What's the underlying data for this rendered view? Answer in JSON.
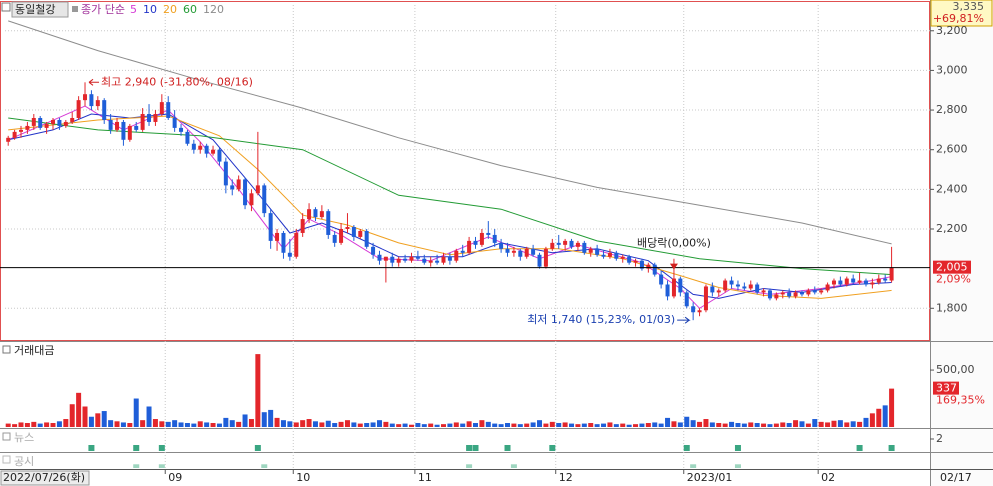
{
  "chart_data": [
    {
      "type": "candlestick",
      "title": "동일철강",
      "ma_label": "종가 단순",
      "up_color": "#e3262b",
      "down_color": "#1f5ed8",
      "xlim": [
        -0.5,
        144
      ],
      "ylim": [
        1640,
        3330
      ],
      "xticks": [
        {
          "value": 25,
          "label": "09"
        },
        {
          "value": 45,
          "label": "10"
        },
        {
          "value": 64,
          "label": "11"
        },
        {
          "value": 86,
          "label": "12"
        },
        {
          "value": 106,
          "label": "2023/01"
        },
        {
          "value": 127,
          "label": "02"
        }
      ],
      "yticks": [
        {
          "value": 3200,
          "label": "3,200"
        },
        {
          "value": 3000,
          "label": "3,000"
        },
        {
          "value": 2800,
          "label": "2,800"
        },
        {
          "value": 2600,
          "label": "2,600"
        },
        {
          "value": 2400,
          "label": "2,400"
        },
        {
          "value": 2200,
          "label": "2,200"
        },
        {
          "value": 1800,
          "label": "1,800"
        }
      ],
      "start_date": "2022/07/26(화)",
      "cursor": {
        "label": "3,335",
        "change": "+69,81%",
        "date": "02/17"
      },
      "last": {
        "value": 2005,
        "label": "2,005",
        "change": "2,09%"
      },
      "high": {
        "x": 12,
        "value": 2940,
        "label": "최고 2,940 (-31,80%, 08/16)"
      },
      "low": {
        "x": 107,
        "value": 1740,
        "label": "최저 1,740 (15,23%, 01/03)"
      },
      "dividend": {
        "x": 104,
        "label": "배당락(0,00%)"
      },
      "ohlc": [
        [
          2640,
          2670,
          2620,
          2660
        ],
        [
          2660,
          2700,
          2650,
          2690
        ],
        [
          2690,
          2720,
          2660,
          2700
        ],
        [
          2700,
          2740,
          2680,
          2720
        ],
        [
          2720,
          2780,
          2700,
          2760
        ],
        [
          2760,
          2770,
          2700,
          2710
        ],
        [
          2710,
          2740,
          2680,
          2730
        ],
        [
          2730,
          2760,
          2700,
          2750
        ],
        [
          2750,
          2760,
          2700,
          2720
        ],
        [
          2720,
          2750,
          2710,
          2740
        ],
        [
          2740,
          2790,
          2730,
          2760
        ],
        [
          2760,
          2870,
          2750,
          2850
        ],
        [
          2850,
          2940,
          2820,
          2880
        ],
        [
          2880,
          2900,
          2800,
          2820
        ],
        [
          2820,
          2870,
          2800,
          2850
        ],
        [
          2850,
          2860,
          2730,
          2750
        ],
        [
          2750,
          2780,
          2680,
          2700
        ],
        [
          2700,
          2760,
          2690,
          2740
        ],
        [
          2740,
          2750,
          2620,
          2650
        ],
        [
          2650,
          2730,
          2640,
          2720
        ],
        [
          2720,
          2740,
          2690,
          2700
        ],
        [
          2700,
          2810,
          2690,
          2780
        ],
        [
          2780,
          2830,
          2720,
          2740
        ],
        [
          2740,
          2800,
          2720,
          2780
        ],
        [
          2780,
          2880,
          2770,
          2840
        ],
        [
          2840,
          2870,
          2750,
          2760
        ],
        [
          2760,
          2800,
          2690,
          2710
        ],
        [
          2710,
          2730,
          2670,
          2690
        ],
        [
          2690,
          2700,
          2620,
          2630
        ],
        [
          2630,
          2650,
          2580,
          2600
        ],
        [
          2600,
          2640,
          2580,
          2620
        ],
        [
          2620,
          2630,
          2560,
          2580
        ],
        [
          2580,
          2620,
          2570,
          2600
        ],
        [
          2600,
          2610,
          2520,
          2540
        ],
        [
          2540,
          2560,
          2380,
          2420
        ],
        [
          2420,
          2450,
          2370,
          2400
        ],
        [
          2400,
          2470,
          2390,
          2450
        ],
        [
          2450,
          2460,
          2300,
          2320
        ],
        [
          2320,
          2400,
          2290,
          2380
        ],
        [
          2380,
          2690,
          2370,
          2420
        ],
        [
          2420,
          2430,
          2260,
          2280
        ],
        [
          2280,
          2300,
          2100,
          2140
        ],
        [
          2140,
          2200,
          2090,
          2180
        ],
        [
          2180,
          2190,
          2050,
          2080
        ],
        [
          2080,
          2150,
          2040,
          2060
        ],
        [
          2060,
          2200,
          2050,
          2180
        ],
        [
          2180,
          2280,
          2160,
          2250
        ],
        [
          2250,
          2330,
          2230,
          2300
        ],
        [
          2300,
          2310,
          2240,
          2260
        ],
        [
          2260,
          2320,
          2250,
          2290
        ],
        [
          2290,
          2300,
          2150,
          2170
        ],
        [
          2170,
          2190,
          2110,
          2130
        ],
        [
          2130,
          2230,
          2120,
          2200
        ],
        [
          2200,
          2280,
          2180,
          2210
        ],
        [
          2210,
          2220,
          2140,
          2160
        ],
        [
          2160,
          2200,
          2150,
          2190
        ],
        [
          2190,
          2200,
          2100,
          2110
        ],
        [
          2110,
          2130,
          2050,
          2070
        ],
        [
          2070,
          2090,
          2020,
          2040
        ],
        [
          2040,
          2060,
          1930,
          2060
        ],
        [
          2060,
          2080,
          2010,
          2030
        ],
        [
          2030,
          2060,
          2010,
          2050
        ],
        [
          2050,
          2070,
          2030,
          2040
        ],
        [
          2040,
          2080,
          2030,
          2060
        ],
        [
          2060,
          2090,
          2040,
          2050
        ],
        [
          2050,
          2070,
          2020,
          2030
        ],
        [
          2030,
          2060,
          2010,
          2040
        ],
        [
          2040,
          2070,
          2020,
          2030
        ],
        [
          2030,
          2080,
          2020,
          2060
        ],
        [
          2060,
          2080,
          2020,
          2040
        ],
        [
          2040,
          2100,
          2030,
          2090
        ],
        [
          2090,
          2120,
          2060,
          2080
        ],
        [
          2080,
          2160,
          2070,
          2140
        ],
        [
          2140,
          2160,
          2100,
          2120
        ],
        [
          2120,
          2200,
          2110,
          2180
        ],
        [
          2180,
          2240,
          2150,
          2170
        ],
        [
          2170,
          2200,
          2110,
          2130
        ],
        [
          2130,
          2150,
          2080,
          2100
        ],
        [
          2100,
          2130,
          2060,
          2080
        ],
        [
          2080,
          2110,
          2060,
          2090
        ],
        [
          2090,
          2100,
          2040,
          2060
        ],
        [
          2060,
          2110,
          2050,
          2100
        ],
        [
          2100,
          2120,
          2060,
          2070
        ],
        [
          2070,
          2080,
          2000,
          2010
        ],
        [
          2010,
          2110,
          2000,
          2100
        ],
        [
          2100,
          2150,
          2090,
          2130
        ],
        [
          2130,
          2170,
          2100,
          2120
        ],
        [
          2120,
          2150,
          2090,
          2140
        ],
        [
          2140,
          2150,
          2100,
          2110
        ],
        [
          2110,
          2140,
          2090,
          2130
        ],
        [
          2130,
          2140,
          2070,
          2080
        ],
        [
          2080,
          2110,
          2060,
          2100
        ],
        [
          2100,
          2120,
          2060,
          2070
        ],
        [
          2070,
          2090,
          2050,
          2060
        ],
        [
          2060,
          2100,
          2050,
          2080
        ],
        [
          2080,
          2090,
          2040,
          2050
        ],
        [
          2050,
          2070,
          2030,
          2060
        ],
        [
          2060,
          2070,
          2020,
          2030
        ],
        [
          2030,
          2050,
          2010,
          2040
        ],
        [
          2040,
          2050,
          1990,
          2000
        ],
        [
          2000,
          2030,
          1980,
          2020
        ],
        [
          2020,
          2030,
          1960,
          1970
        ],
        [
          1970,
          1990,
          1900,
          1920
        ],
        [
          1920,
          1940,
          1840,
          1860
        ],
        [
          1860,
          2050,
          1850,
          1950
        ],
        [
          1950,
          1960,
          1860,
          1880
        ],
        [
          1880,
          1890,
          1800,
          1810
        ],
        [
          1810,
          1830,
          1740,
          1780
        ],
        [
          1780,
          1800,
          1760,
          1790
        ],
        [
          1790,
          1920,
          1780,
          1910
        ],
        [
          1910,
          1930,
          1860,
          1880
        ],
        [
          1880,
          1900,
          1860,
          1890
        ],
        [
          1890,
          1950,
          1880,
          1940
        ],
        [
          1940,
          1960,
          1900,
          1920
        ],
        [
          1920,
          1940,
          1890,
          1910
        ],
        [
          1910,
          1930,
          1890,
          1900
        ],
        [
          1900,
          1940,
          1890,
          1920
        ],
        [
          1920,
          1930,
          1870,
          1880
        ],
        [
          1880,
          1900,
          1860,
          1890
        ],
        [
          1890,
          1900,
          1840,
          1850
        ],
        [
          1850,
          1880,
          1840,
          1870
        ],
        [
          1870,
          1890,
          1850,
          1880
        ],
        [
          1880,
          1900,
          1850,
          1860
        ],
        [
          1860,
          1890,
          1850,
          1880
        ],
        [
          1880,
          1890,
          1860,
          1870
        ],
        [
          1870,
          1900,
          1860,
          1890
        ],
        [
          1890,
          1910,
          1870,
          1880
        ],
        [
          1880,
          1900,
          1870,
          1890
        ],
        [
          1890,
          1930,
          1880,
          1920
        ],
        [
          1920,
          1950,
          1900,
          1940
        ],
        [
          1940,
          1960,
          1910,
          1920
        ],
        [
          1920,
          1960,
          1910,
          1950
        ],
        [
          1950,
          1970,
          1920,
          1930
        ],
        [
          1930,
          1980,
          1920,
          1940
        ],
        [
          1940,
          1950,
          1910,
          1920
        ],
        [
          1920,
          1950,
          1900,
          1930
        ],
        [
          1930,
          1970,
          1920,
          1950
        ],
        [
          1950,
          1970,
          1930,
          1940
        ],
        [
          1940,
          2110,
          1930,
          2005
        ]
      ],
      "series": [
        {
          "name": "5",
          "color": "#d63ad6",
          "x": [
            0,
            5,
            12,
            18,
            25,
            30,
            36,
            43,
            47,
            52,
            58,
            66,
            75,
            83,
            89,
            99,
            105,
            108,
            113,
            119,
            127,
            135,
            138
          ],
          "values": [
            2650,
            2720,
            2820,
            2700,
            2800,
            2640,
            2400,
            2100,
            2250,
            2170,
            2050,
            2040,
            2160,
            2050,
            2120,
            2030,
            1900,
            1800,
            1900,
            1870,
            1900,
            1940,
            1960
          ]
        },
        {
          "name": "10",
          "color": "#2234c8",
          "x": [
            0,
            7,
            13,
            19,
            25,
            32,
            38,
            44,
            49,
            53,
            61,
            71,
            77,
            85,
            92,
            100,
            107,
            111,
            118,
            124,
            132,
            138
          ],
          "values": [
            2650,
            2700,
            2780,
            2760,
            2780,
            2650,
            2420,
            2180,
            2230,
            2180,
            2060,
            2060,
            2130,
            2080,
            2100,
            2040,
            1870,
            1850,
            1900,
            1880,
            1920,
            1930
          ]
        },
        {
          "name": "20",
          "color": "#f0a020",
          "x": [
            0,
            14,
            25,
            33,
            39,
            46,
            53,
            61,
            69,
            77,
            86,
            96,
            105,
            111,
            118,
            127,
            138
          ],
          "values": [
            2700,
            2750,
            2770,
            2670,
            2500,
            2270,
            2220,
            2130,
            2070,
            2100,
            2100,
            2050,
            1965,
            1905,
            1865,
            1850,
            1890
          ]
        },
        {
          "name": "60",
          "color": "#239b35",
          "x": [
            0,
            14,
            30,
            46,
            61,
            77,
            92,
            108,
            124,
            138
          ],
          "values": [
            2760,
            2700,
            2670,
            2600,
            2370,
            2300,
            2140,
            2050,
            2000,
            1970
          ]
        },
        {
          "name": "120",
          "color": "#8c8c8c",
          "x": [
            0,
            14,
            30,
            46,
            61,
            77,
            92,
            108,
            124,
            138
          ],
          "values": [
            3250,
            3100,
            2950,
            2810,
            2660,
            2520,
            2410,
            2320,
            2230,
            2125
          ]
        }
      ]
    },
    {
      "type": "bar",
      "title": "거래대금",
      "ylim": [
        0,
        720
      ],
      "yticks": [
        {
          "value": 500,
          "label": "500,00"
        }
      ],
      "change": "169,35%",
      "values": [
        30,
        25,
        40,
        35,
        45,
        30,
        40,
        35,
        50,
        70,
        200,
        300,
        180,
        90,
        120,
        140,
        60,
        50,
        40,
        35,
        250,
        60,
        180,
        70,
        50,
        45,
        60,
        40,
        35,
        30,
        50,
        40,
        35,
        30,
        80,
        60,
        45,
        110,
        70,
        640,
        130,
        150,
        80,
        60,
        50,
        40,
        60,
        70,
        50,
        40,
        55,
        35,
        45,
        60,
        40,
        30,
        35,
        40,
        60,
        45,
        30,
        25,
        30,
        20,
        35,
        25,
        30,
        20,
        25,
        30,
        40,
        30,
        50,
        35,
        60,
        45,
        30,
        25,
        35,
        30,
        25,
        30,
        40,
        60,
        30,
        45,
        35,
        40,
        30,
        25,
        30,
        35,
        25,
        30,
        40,
        25,
        30,
        20,
        25,
        30,
        35,
        40,
        30,
        80,
        50,
        40,
        90,
        60,
        45,
        70,
        40,
        35,
        30,
        45,
        35,
        30,
        40,
        35,
        30,
        25,
        30,
        40,
        35,
        60,
        50,
        30,
        70,
        45,
        40,
        55,
        60,
        40,
        50,
        45,
        80,
        120,
        160,
        190,
        337
      ]
    },
    {
      "type": "bar",
      "title": "뉴스",
      "color": "#3aa682",
      "ylim": [
        0,
        3.5
      ],
      "yticks": [
        2
      ],
      "x": [
        13,
        20,
        24,
        39,
        72,
        73,
        78,
        85,
        106,
        114,
        133,
        138
      ],
      "values": [
        1,
        1,
        1,
        1,
        1,
        1,
        1,
        1,
        1,
        1,
        1,
        1
      ]
    },
    {
      "type": "bar",
      "title": "공시",
      "color": "#9fd6c0",
      "ylim": [
        0,
        3.5
      ],
      "x": [
        20,
        24,
        40,
        72,
        79,
        107,
        114
      ],
      "values": [
        1,
        1,
        1,
        1,
        1,
        1,
        1
      ]
    }
  ]
}
